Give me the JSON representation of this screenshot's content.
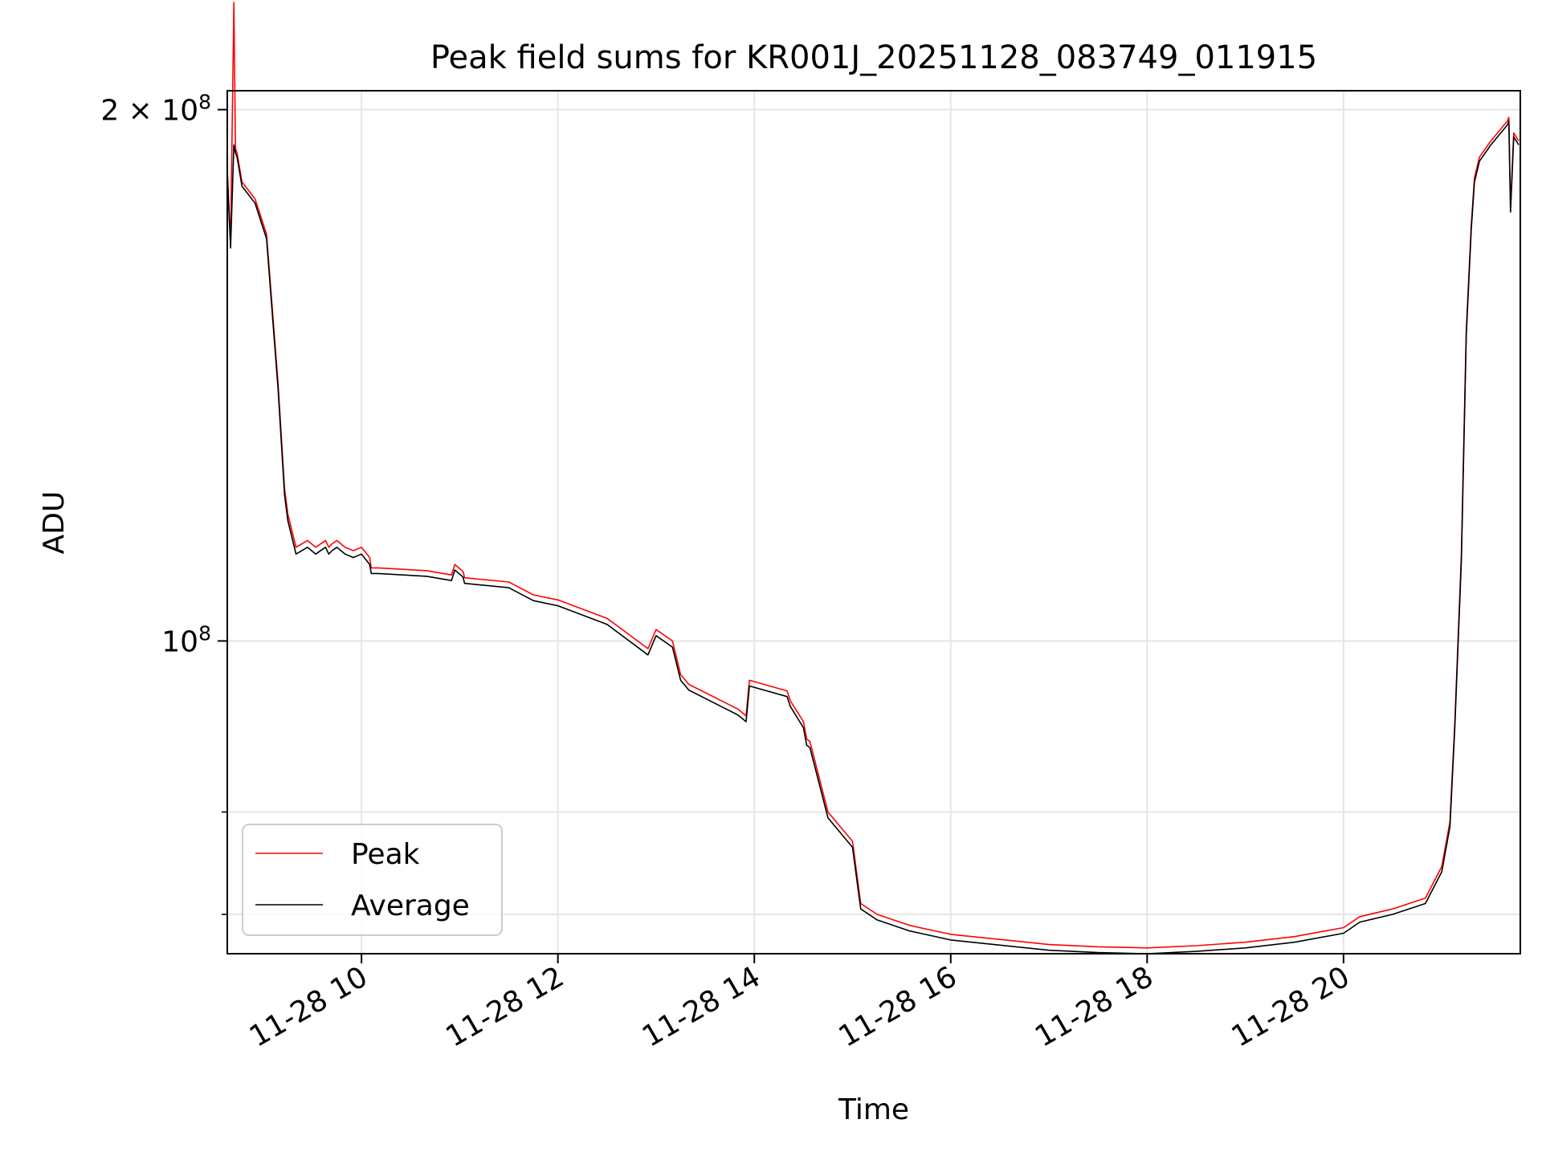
{
  "chart_data": {
    "type": "line",
    "title": "Peak field sums for KR001J_20251128_083749_011915",
    "xlabel": "Time",
    "ylabel": "ADU",
    "yscale": "log",
    "xlim": [
      "2025-11-28 08:38",
      "2025-11-28 21:48"
    ],
    "ylim": [
      66500000,
      205000000
    ],
    "x_ticks": [
      {
        "value": "2025-11-28 10:00",
        "label": "11-28 10"
      },
      {
        "value": "2025-11-28 12:00",
        "label": "11-28 12"
      },
      {
        "value": "2025-11-28 14:00",
        "label": "11-28 14"
      },
      {
        "value": "2025-11-28 16:00",
        "label": "11-28 16"
      },
      {
        "value": "2025-11-28 18:00",
        "label": "11-28 18"
      },
      {
        "value": "2025-11-28 20:00",
        "label": "11-28 20"
      }
    ],
    "y_ticks_major": [
      {
        "value": 100000000,
        "label_base": "10",
        "label_exp": "8"
      },
      {
        "value": 200000000,
        "label_base": "2 × 10",
        "label_exp": "8"
      }
    ],
    "y_ticks_minor": [
      70000000,
      80000000
    ],
    "grid": true,
    "legend_position": "lower-left",
    "series": [
      {
        "name": "Peak",
        "color": "#ff0000",
        "x": [
          "2025-11-28 08:38",
          "2025-11-28 08:40",
          "2025-11-28 08:42",
          "2025-11-28 08:43",
          "2025-11-28 08:44",
          "2025-11-28 08:47",
          "2025-11-28 08:55",
          "2025-11-28 09:02",
          "2025-11-28 09:09",
          "2025-11-28 09:13",
          "2025-11-28 09:15",
          "2025-11-28 09:20",
          "2025-11-28 09:27",
          "2025-11-28 09:32",
          "2025-11-28 09:38",
          "2025-11-28 09:40",
          "2025-11-28 09:42",
          "2025-11-28 09:45",
          "2025-11-28 09:50",
          "2025-11-28 09:55",
          "2025-11-28 10:00",
          "2025-11-28 10:05",
          "2025-11-28 10:06",
          "2025-11-28 10:10",
          "2025-11-28 10:40",
          "2025-11-28 10:55",
          "2025-11-28 10:57",
          "2025-11-28 11:02",
          "2025-11-28 11:03",
          "2025-11-28 11:30",
          "2025-11-28 11:45",
          "2025-11-28 12:00",
          "2025-11-28 12:30",
          "2025-11-28 12:55",
          "2025-11-28 13:00",
          "2025-11-28 13:10",
          "2025-11-28 13:15",
          "2025-11-28 13:20",
          "2025-11-28 13:50",
          "2025-11-28 13:55",
          "2025-11-28 13:57",
          "2025-11-28 14:20",
          "2025-11-28 14:22",
          "2025-11-28 14:30",
          "2025-11-28 14:32",
          "2025-11-28 14:34",
          "2025-11-28 14:45",
          "2025-11-28 15:00",
          "2025-11-28 15:05",
          "2025-11-28 15:15",
          "2025-11-28 15:35",
          "2025-11-28 16:00",
          "2025-11-28 16:40",
          "2025-11-28 17:00",
          "2025-11-28 17:30",
          "2025-11-28 18:00",
          "2025-11-28 18:30",
          "2025-11-28 19:00",
          "2025-11-28 19:30",
          "2025-11-28 20:00",
          "2025-11-28 20:10",
          "2025-11-28 20:30",
          "2025-11-28 20:50",
          "2025-11-28 21:00",
          "2025-11-28 21:05",
          "2025-11-28 21:08",
          "2025-11-28 21:12",
          "2025-11-28 21:15",
          "2025-11-28 21:18",
          "2025-11-28 21:20",
          "2025-11-28 21:23",
          "2025-11-28 21:30",
          "2025-11-28 21:40",
          "2025-11-28 21:41",
          "2025-11-28 21:42",
          "2025-11-28 21:44",
          "2025-11-28 21:47"
        ],
        "y": [
          185000000,
          168000000,
          230000000,
          190000000,
          189000000,
          182000000,
          178000000,
          170000000,
          140000000,
          122000000,
          118000000,
          113000000,
          114000000,
          113000000,
          114000000,
          113000000,
          113500000,
          114000000,
          113000000,
          112500000,
          113000000,
          111500000,
          110000000,
          110000000,
          109600000,
          109000000,
          110500000,
          109500000,
          108600000,
          108000000,
          106200000,
          105500000,
          103000000,
          99000000,
          101500000,
          100000000,
          95700000,
          94500000,
          91500000,
          90700000,
          95000000,
          93700000,
          92500000,
          90000000,
          88000000,
          87700000,
          80000000,
          77000000,
          71000000,
          70000000,
          69000000,
          68200000,
          67600000,
          67300000,
          67100000,
          67000000,
          67200000,
          67500000,
          68000000,
          68800000,
          69800000,
          70500000,
          71500000,
          74500000,
          79000000,
          90000000,
          112000000,
          150000000,
          172000000,
          183000000,
          188000000,
          192000000,
          197000000,
          198000000,
          176000000,
          194000000,
          192000000
        ]
      },
      {
        "name": "Average",
        "color": "#000000",
        "x": [
          "2025-11-28 08:38",
          "2025-11-28 08:40",
          "2025-11-28 08:42",
          "2025-11-28 08:43",
          "2025-11-28 08:44",
          "2025-11-28 08:47",
          "2025-11-28 08:55",
          "2025-11-28 09:02",
          "2025-11-28 09:09",
          "2025-11-28 09:13",
          "2025-11-28 09:15",
          "2025-11-28 09:20",
          "2025-11-28 09:27",
          "2025-11-28 09:32",
          "2025-11-28 09:38",
          "2025-11-28 09:40",
          "2025-11-28 09:42",
          "2025-11-28 09:45",
          "2025-11-28 09:50",
          "2025-11-28 09:55",
          "2025-11-28 10:00",
          "2025-11-28 10:05",
          "2025-11-28 10:06",
          "2025-11-28 10:10",
          "2025-11-28 10:40",
          "2025-11-28 10:55",
          "2025-11-28 10:57",
          "2025-11-28 11:02",
          "2025-11-28 11:03",
          "2025-11-28 11:30",
          "2025-11-28 11:45",
          "2025-11-28 12:00",
          "2025-11-28 12:30",
          "2025-11-28 12:55",
          "2025-11-28 13:00",
          "2025-11-28 13:10",
          "2025-11-28 13:15",
          "2025-11-28 13:20",
          "2025-11-28 13:50",
          "2025-11-28 13:55",
          "2025-11-28 13:57",
          "2025-11-28 14:20",
          "2025-11-28 14:22",
          "2025-11-28 14:30",
          "2025-11-28 14:32",
          "2025-11-28 14:34",
          "2025-11-28 14:45",
          "2025-11-28 15:00",
          "2025-11-28 15:05",
          "2025-11-28 15:15",
          "2025-11-28 15:35",
          "2025-11-28 16:00",
          "2025-11-28 16:40",
          "2025-11-28 17:00",
          "2025-11-28 17:30",
          "2025-11-28 18:00",
          "2025-11-28 18:30",
          "2025-11-28 19:00",
          "2025-11-28 19:30",
          "2025-11-28 20:00",
          "2025-11-28 20:10",
          "2025-11-28 20:30",
          "2025-11-28 20:50",
          "2025-11-28 21:00",
          "2025-11-28 21:05",
          "2025-11-28 21:08",
          "2025-11-28 21:12",
          "2025-11-28 21:15",
          "2025-11-28 21:18",
          "2025-11-28 21:20",
          "2025-11-28 21:23",
          "2025-11-28 21:30",
          "2025-11-28 21:40",
          "2025-11-28 21:41",
          "2025-11-28 21:42",
          "2025-11-28 21:44",
          "2025-11-28 21:47"
        ],
        "y": [
          184000000,
          167000000,
          191000000,
          189000000,
          188000000,
          181000000,
          177000000,
          169000000,
          139000000,
          121000000,
          117000000,
          112000000,
          113000000,
          112000000,
          113000000,
          112000000,
          112500000,
          113000000,
          112000000,
          111500000,
          112000000,
          110500000,
          109200000,
          109200000,
          108800000,
          108200000,
          109700000,
          108700000,
          107800000,
          107200000,
          105400000,
          104700000,
          102200000,
          98200000,
          100700000,
          99200000,
          95000000,
          93800000,
          90800000,
          90000000,
          94300000,
          93000000,
          91800000,
          89300000,
          87300000,
          87000000,
          79400000,
          76400000,
          70500000,
          69500000,
          68500000,
          67700000,
          67100000,
          66800000,
          66600000,
          66500000,
          66700000,
          67000000,
          67500000,
          68300000,
          69300000,
          70000000,
          71000000,
          74000000,
          78500000,
          89500000,
          111000000,
          149000000,
          171000000,
          182000000,
          187000000,
          191000000,
          196000000,
          197000000,
          175000000,
          193000000,
          191000000
        ]
      }
    ]
  }
}
